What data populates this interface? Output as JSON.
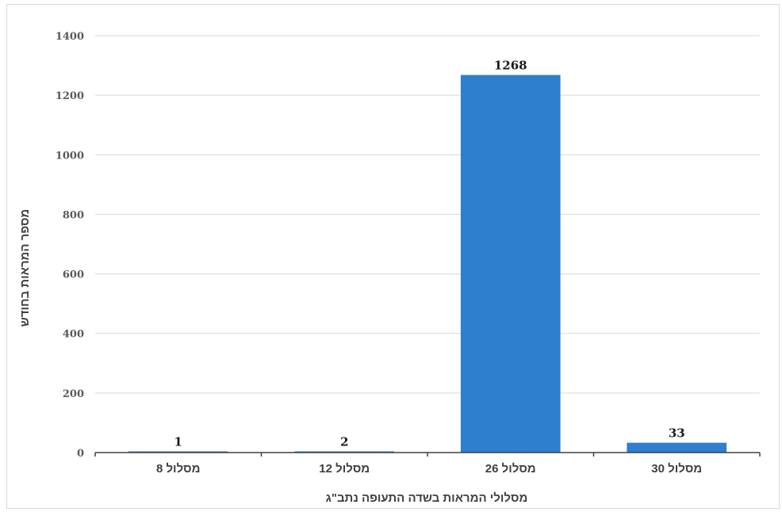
{
  "chart_data": {
    "type": "bar",
    "title": "",
    "categories": [
      "מסלול 8",
      "מסלול 12",
      "מסלול 26",
      "מסלול 30"
    ],
    "series": [
      {
        "values": [
          1,
          2,
          1268,
          33
        ]
      }
    ],
    "data_labels": [
      "1",
      "2",
      "1268",
      "33"
    ],
    "xlabel": "מסלולי המראות בשדה התעופה נתב\"ג",
    "ylabel": "מספר המראות בחודש",
    "ylim": [
      0,
      1400
    ],
    "yticks": [
      0,
      200,
      400,
      600,
      800,
      1000,
      1200,
      1400
    ],
    "ytick_labels": [
      "0",
      "200",
      "400",
      "600",
      "800",
      "1000",
      "1200",
      "1400"
    ],
    "grid": true,
    "legend": "none",
    "colors": {
      "bar": "#2e7fcd",
      "grid": "#d9d9d9",
      "axis": "#404040"
    }
  }
}
